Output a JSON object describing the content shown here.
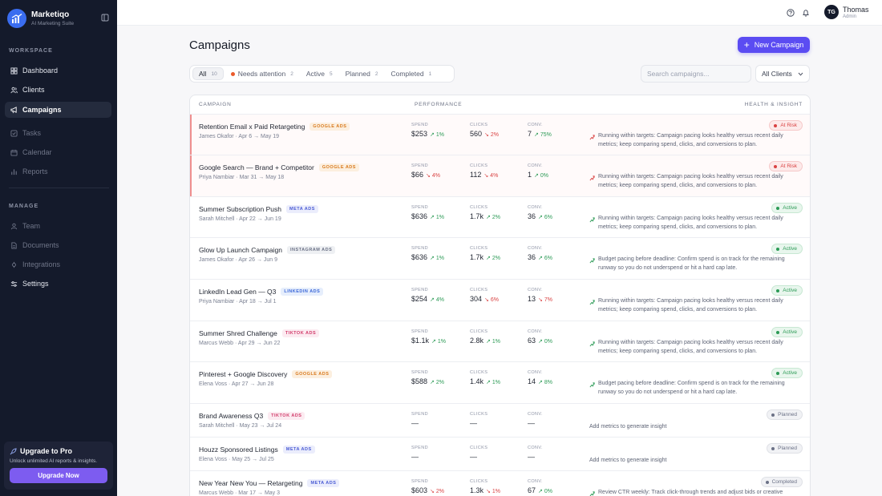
{
  "brand": {
    "name": "Marketiqo",
    "tagline": "AI Marketing Suite"
  },
  "sidebar": {
    "workspace_label": "WORKSPACE",
    "manage_label": "MANAGE",
    "items": [
      {
        "label": "Dashboard",
        "icon": "grid-icon"
      },
      {
        "label": "Clients",
        "icon": "users-icon"
      },
      {
        "label": "Campaigns",
        "icon": "megaphone-icon"
      },
      {
        "label": "Tasks",
        "icon": "check-square-icon"
      },
      {
        "label": "Calendar",
        "icon": "calendar-icon"
      },
      {
        "label": "Reports",
        "icon": "bar-chart-icon"
      },
      {
        "label": "Team",
        "icon": "team-icon"
      },
      {
        "label": "Documents",
        "icon": "document-icon"
      },
      {
        "label": "Integrations",
        "icon": "plug-icon"
      },
      {
        "label": "Settings",
        "icon": "sliders-icon"
      }
    ],
    "upgrade": {
      "title": "Upgrade to Pro",
      "subtitle": "Unlock unlimited AI reports & insights.",
      "button": "Upgrade Now"
    }
  },
  "topbar": {
    "user_initials": "TG",
    "user_name": "Thomas",
    "user_role": "Admin"
  },
  "page": {
    "title": "Campaigns",
    "new_button": "New Campaign"
  },
  "filters": [
    {
      "label": "All",
      "count": "10"
    },
    {
      "label": "Needs attention",
      "count": "2"
    },
    {
      "label": "Active",
      "count": "5"
    },
    {
      "label": "Planned",
      "count": "2"
    },
    {
      "label": "Completed",
      "count": "1"
    }
  ],
  "search": {
    "placeholder": "Search campaigns..."
  },
  "client_filter": {
    "value": "All Clients"
  },
  "table": {
    "headers": {
      "campaign": "CAMPAIGN",
      "performance": "PERFORMANCE",
      "health": "HEALTH & INSIGHT"
    },
    "metric_labels": {
      "spend": "SPEND",
      "clicks": "CLICKS",
      "conv": "CONV."
    },
    "rows": [
      {
        "name": "Retention Email x Paid Retargeting",
        "platform": "GOOGLE ADS",
        "meta": "James Okafor · Apr 6 → May 19",
        "spend": "$253",
        "spend_ch": "1%",
        "spend_dir": "up",
        "clicks": "560",
        "clicks_ch": "2%",
        "clicks_dir": "down",
        "conv": "7",
        "conv_ch": "75%",
        "conv_dir": "up",
        "status": "At Risk",
        "insight": "Running within targets: Campaign pacing looks healthy versus recent daily metrics; keep comparing spend, clicks, and conversions to plan."
      },
      {
        "name": "Google Search — Brand + Competitor",
        "platform": "GOOGLE ADS",
        "meta": "Priya Nambiar · Mar 31 → May 18",
        "spend": "$66",
        "spend_ch": "4%",
        "spend_dir": "down",
        "clicks": "112",
        "clicks_ch": "4%",
        "clicks_dir": "down",
        "conv": "1",
        "conv_ch": "0%",
        "conv_dir": "up",
        "status": "At Risk",
        "insight": "Running within targets: Campaign pacing looks healthy versus recent daily metrics; keep comparing spend, clicks, and conversions to plan."
      },
      {
        "name": "Summer Subscription Push",
        "platform": "META ADS",
        "meta": "Sarah Mitchell · Apr 22 → Jun 19",
        "spend": "$636",
        "spend_ch": "1%",
        "spend_dir": "up",
        "clicks": "1.7k",
        "clicks_ch": "2%",
        "clicks_dir": "up",
        "conv": "36",
        "conv_ch": "6%",
        "conv_dir": "up",
        "status": "Active",
        "insight": "Running within targets: Campaign pacing looks healthy versus recent daily metrics; keep comparing spend, clicks, and conversions to plan."
      },
      {
        "name": "Glow Up Launch Campaign",
        "platform": "INSTAGRAM ADS",
        "meta": "James Okafor · Apr 26 → Jun 9",
        "spend": "$636",
        "spend_ch": "1%",
        "spend_dir": "up",
        "clicks": "1.7k",
        "clicks_ch": "2%",
        "clicks_dir": "up",
        "conv": "36",
        "conv_ch": "6%",
        "conv_dir": "up",
        "status": "Active",
        "insight": "Budget pacing before deadline: Confirm spend is on track for the remaining runway so you do not underspend or hit a hard cap late."
      },
      {
        "name": "LinkedIn Lead Gen — Q3",
        "platform": "LINKEDIN ADS",
        "meta": "Priya Nambiar · Apr 18 → Jul 1",
        "spend": "$254",
        "spend_ch": "4%",
        "spend_dir": "up",
        "clicks": "304",
        "clicks_ch": "6%",
        "clicks_dir": "down",
        "conv": "13",
        "conv_ch": "7%",
        "conv_dir": "down",
        "status": "Active",
        "insight": "Running within targets: Campaign pacing looks healthy versus recent daily metrics; keep comparing spend, clicks, and conversions to plan."
      },
      {
        "name": "Summer Shred Challenge",
        "platform": "TIKTOK ADS",
        "meta": "Marcus Webb · Apr 29 → Jun 22",
        "spend": "$1.1k",
        "spend_ch": "1%",
        "spend_dir": "up",
        "clicks": "2.8k",
        "clicks_ch": "1%",
        "clicks_dir": "up",
        "conv": "63",
        "conv_ch": "0%",
        "conv_dir": "up",
        "status": "Active",
        "insight": "Running within targets: Campaign pacing looks healthy versus recent daily metrics; keep comparing spend, clicks, and conversions to plan."
      },
      {
        "name": "Pinterest + Google Discovery",
        "platform": "GOOGLE ADS",
        "meta": "Elena Voss · Apr 27 → Jun 28",
        "spend": "$588",
        "spend_ch": "2%",
        "spend_dir": "up",
        "clicks": "1.4k",
        "clicks_ch": "1%",
        "clicks_dir": "up",
        "conv": "14",
        "conv_ch": "8%",
        "conv_dir": "up",
        "status": "Active",
        "insight": "Budget pacing before deadline: Confirm spend is on track for the remaining runway so you do not underspend or hit a hard cap late."
      },
      {
        "name": "Brand Awareness Q3",
        "platform": "TIKTOK ADS",
        "meta": "Sarah Mitchell · May 23 → Jul 24",
        "spend": "—",
        "spend_ch": "",
        "spend_dir": "",
        "clicks": "—",
        "clicks_ch": "",
        "clicks_dir": "",
        "conv": "—",
        "conv_ch": "",
        "conv_dir": "",
        "status": "Planned",
        "insight": "Add metrics to generate insight"
      },
      {
        "name": "Houzz Sponsored Listings",
        "platform": "META ADS",
        "meta": "Elena Voss · May 25 → Jul 25",
        "spend": "—",
        "spend_ch": "",
        "spend_dir": "",
        "clicks": "—",
        "clicks_ch": "",
        "clicks_dir": "",
        "conv": "—",
        "conv_ch": "",
        "conv_dir": "",
        "status": "Planned",
        "insight": "Add metrics to generate insight"
      },
      {
        "name": "New Year New You — Retargeting",
        "platform": "META ADS",
        "meta": "Marcus Webb · Mar 17 → May 3",
        "spend": "$603",
        "spend_ch": "2%",
        "spend_dir": "down",
        "clicks": "1.3k",
        "clicks_ch": "1%",
        "clicks_dir": "down",
        "conv": "67",
        "conv_ch": "0%",
        "conv_dir": "up",
        "status": "Completed",
        "insight": "Review CTR weekly: Track click-through trends and adjust bids or creative"
      }
    ]
  },
  "colors": {
    "sidebar_bg": "#141a2b",
    "accent": "#5b4cf2",
    "risk": "#d94242",
    "active": "#2b9a55",
    "planned": "#6b7186",
    "google_tag": "#d97a1e",
    "meta_tag": "#4a5bd4",
    "instagram_tag": "#6b7186",
    "linkedin_tag": "#3b67d8",
    "tiktok_tag": "#d13b6a"
  }
}
